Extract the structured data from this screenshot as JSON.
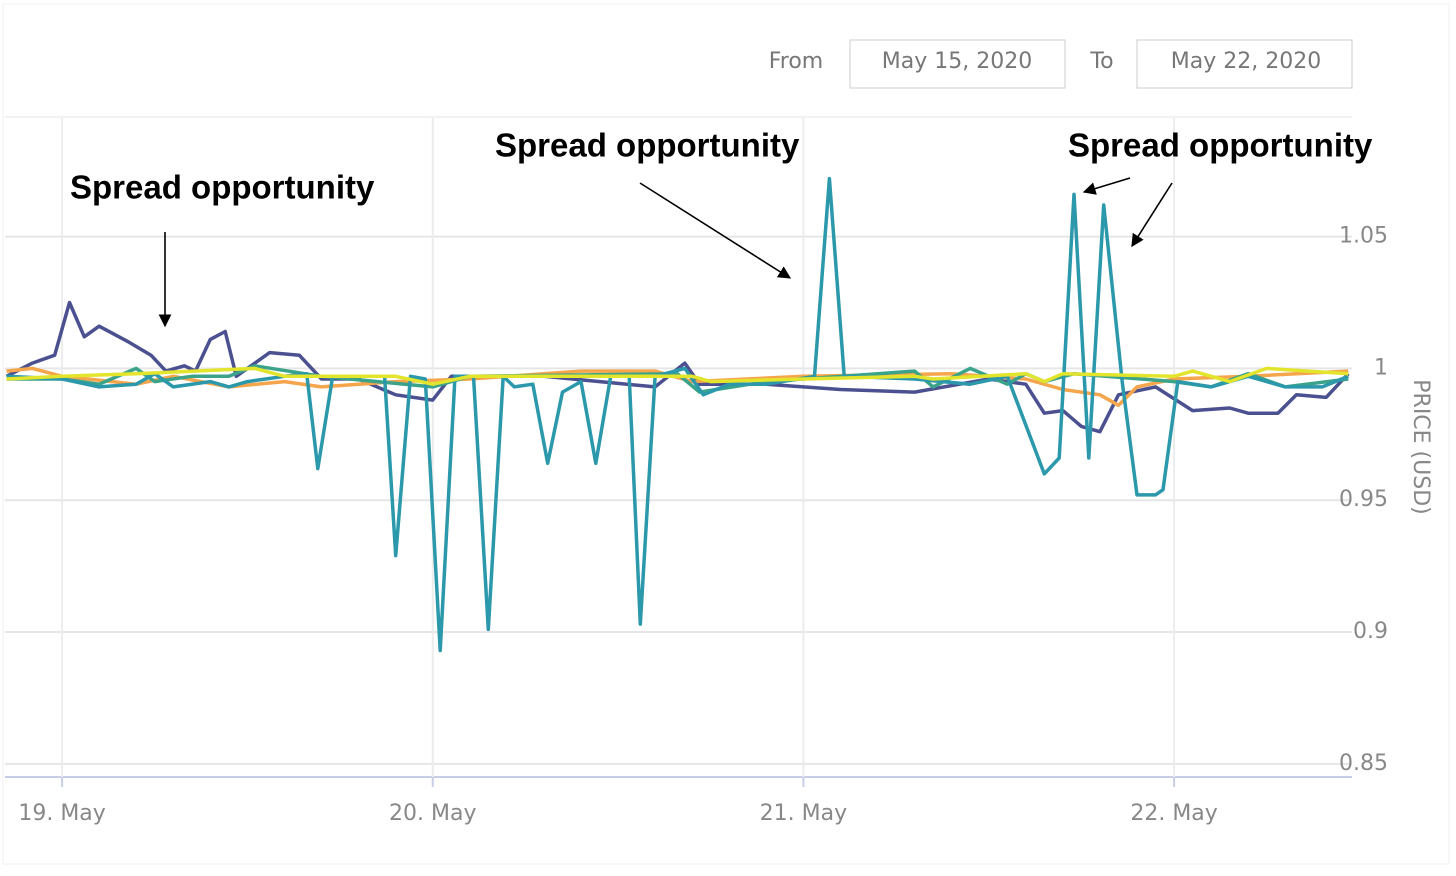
{
  "header": {
    "from_label": "From",
    "from_date": "May 15, 2020",
    "to_label": "To",
    "to_date": "May 22, 2020"
  },
  "chart_data": {
    "type": "line",
    "annotations": [
      "Spread opportunity",
      "Spread opportunity",
      "Spread opportunity"
    ],
    "y_axis_label": "PRICE (USD)",
    "xlim": [
      18.846,
      22.48
    ],
    "xticks": [
      {
        "value": 19,
        "label": "19. May"
      },
      {
        "value": 20,
        "label": "20. May"
      },
      {
        "value": 21,
        "label": "21. May"
      },
      {
        "value": 22,
        "label": "22. May"
      }
    ],
    "ylim": [
      0.845,
      1.095
    ],
    "yticks": [
      0.85,
      0.9,
      0.95,
      1,
      1.05
    ],
    "grid": true,
    "series": [
      {
        "color": "#4b5190",
        "x": [
          18.85,
          18.92,
          18.98,
          19.02,
          19.06,
          19.1,
          19.18,
          19.24,
          19.28,
          19.33,
          19.36,
          19.4,
          19.44,
          19.47,
          19.56,
          19.64,
          19.7,
          19.8,
          19.9,
          20.0,
          20.05,
          20.3,
          20.6,
          20.68,
          20.72,
          20.9,
          21.1,
          21.3,
          21.5,
          21.6,
          21.65,
          21.7,
          21.75,
          21.8,
          21.85,
          21.95,
          22.05,
          22.15,
          22.2,
          22.28,
          22.33,
          22.41,
          22.47
        ],
        "values": [
          0.997,
          1.002,
          1.005,
          1.025,
          1.012,
          1.016,
          1.01,
          1.005,
          0.999,
          1.001,
          0.999,
          1.011,
          1.014,
          0.997,
          1.006,
          1.005,
          0.996,
          0.996,
          0.99,
          0.988,
          0.997,
          0.997,
          0.993,
          1.002,
          0.994,
          0.994,
          0.992,
          0.991,
          0.996,
          0.994,
          0.983,
          0.984,
          0.978,
          0.976,
          0.99,
          0.993,
          0.984,
          0.985,
          0.983,
          0.983,
          0.99,
          0.989,
          0.998
        ]
      },
      {
        "color": "#f5a54b",
        "x": [
          18.85,
          18.92,
          19.0,
          19.2,
          19.3,
          19.45,
          19.6,
          19.7,
          19.9,
          20.1,
          20.4,
          20.6,
          20.7,
          21.0,
          21.4,
          21.6,
          21.7,
          21.8,
          21.85,
          21.9,
          22.0,
          22.2,
          22.47
        ],
        "values": [
          0.999,
          1.0,
          0.997,
          0.994,
          0.997,
          0.993,
          0.995,
          0.993,
          0.995,
          0.996,
          0.999,
          0.999,
          0.995,
          0.997,
          0.998,
          0.996,
          0.992,
          0.99,
          0.986,
          0.993,
          0.996,
          0.997,
          0.999
        ]
      },
      {
        "color": "#3aa38a",
        "x": [
          18.85,
          19.0,
          19.1,
          19.2,
          19.25,
          19.35,
          19.45,
          19.52,
          19.7,
          20.0,
          20.1,
          20.66,
          20.72,
          20.9,
          21.3,
          21.35,
          21.45,
          21.55,
          21.6,
          21.65,
          21.73,
          22.0,
          22.1,
          22.2,
          22.3,
          22.47
        ],
        "values": [
          0.996,
          0.996,
          0.994,
          1.0,
          0.995,
          0.997,
          0.997,
          1.001,
          0.997,
          0.993,
          0.997,
          0.998,
          0.991,
          0.995,
          0.999,
          0.993,
          1.0,
          0.994,
          0.998,
          0.995,
          0.998,
          0.995,
          0.993,
          0.998,
          0.993,
          0.996
        ]
      },
      {
        "color": "#2b98ab",
        "x": [
          18.85,
          19.0,
          19.1,
          19.2,
          19.25,
          19.3,
          19.4,
          19.45,
          19.5,
          19.6,
          19.66,
          19.69,
          19.73,
          19.87,
          19.9,
          19.94,
          19.98,
          20.02,
          20.06,
          20.11,
          20.15,
          20.19,
          20.22,
          20.27,
          20.31,
          20.35,
          20.4,
          20.44,
          20.48,
          20.53,
          20.56,
          20.6,
          20.68,
          20.73,
          20.8,
          20.9,
          21.03,
          21.07,
          21.11,
          21.3,
          21.45,
          21.55,
          21.65,
          21.69,
          21.73,
          21.77,
          21.81,
          21.86,
          21.9,
          21.95,
          21.97,
          22.01,
          22.1,
          22.2,
          22.3,
          22.4,
          22.47
        ],
        "values": [
          0.997,
          0.996,
          0.993,
          0.994,
          0.998,
          0.993,
          0.995,
          0.993,
          0.995,
          0.997,
          0.998,
          0.962,
          0.997,
          0.997,
          0.929,
          0.997,
          0.996,
          0.893,
          0.997,
          0.997,
          0.901,
          0.997,
          0.993,
          0.994,
          0.964,
          0.991,
          0.995,
          0.964,
          0.997,
          0.997,
          0.903,
          0.997,
          1.0,
          0.99,
          0.994,
          0.994,
          0.997,
          1.072,
          0.997,
          0.996,
          0.994,
          0.997,
          0.96,
          0.966,
          1.066,
          0.966,
          1.062,
          0.995,
          0.952,
          0.952,
          0.954,
          0.995,
          0.993,
          0.997,
          0.993,
          0.993,
          0.997
        ]
      },
      {
        "color": "#e3e42c",
        "x": [
          18.85,
          19.0,
          19.2,
          19.52,
          19.6,
          19.9,
          20.0,
          20.1,
          20.7,
          20.75,
          21.0,
          21.3,
          21.35,
          21.6,
          21.65,
          21.7,
          22.0,
          22.05,
          22.15,
          22.25,
          22.47
        ],
        "values": [
          0.996,
          0.997,
          0.998,
          1.0,
          0.997,
          0.997,
          0.994,
          0.997,
          0.997,
          0.995,
          0.996,
          0.997,
          0.996,
          0.998,
          0.995,
          0.998,
          0.997,
          0.999,
          0.995,
          1.0,
          0.998
        ]
      }
    ]
  }
}
